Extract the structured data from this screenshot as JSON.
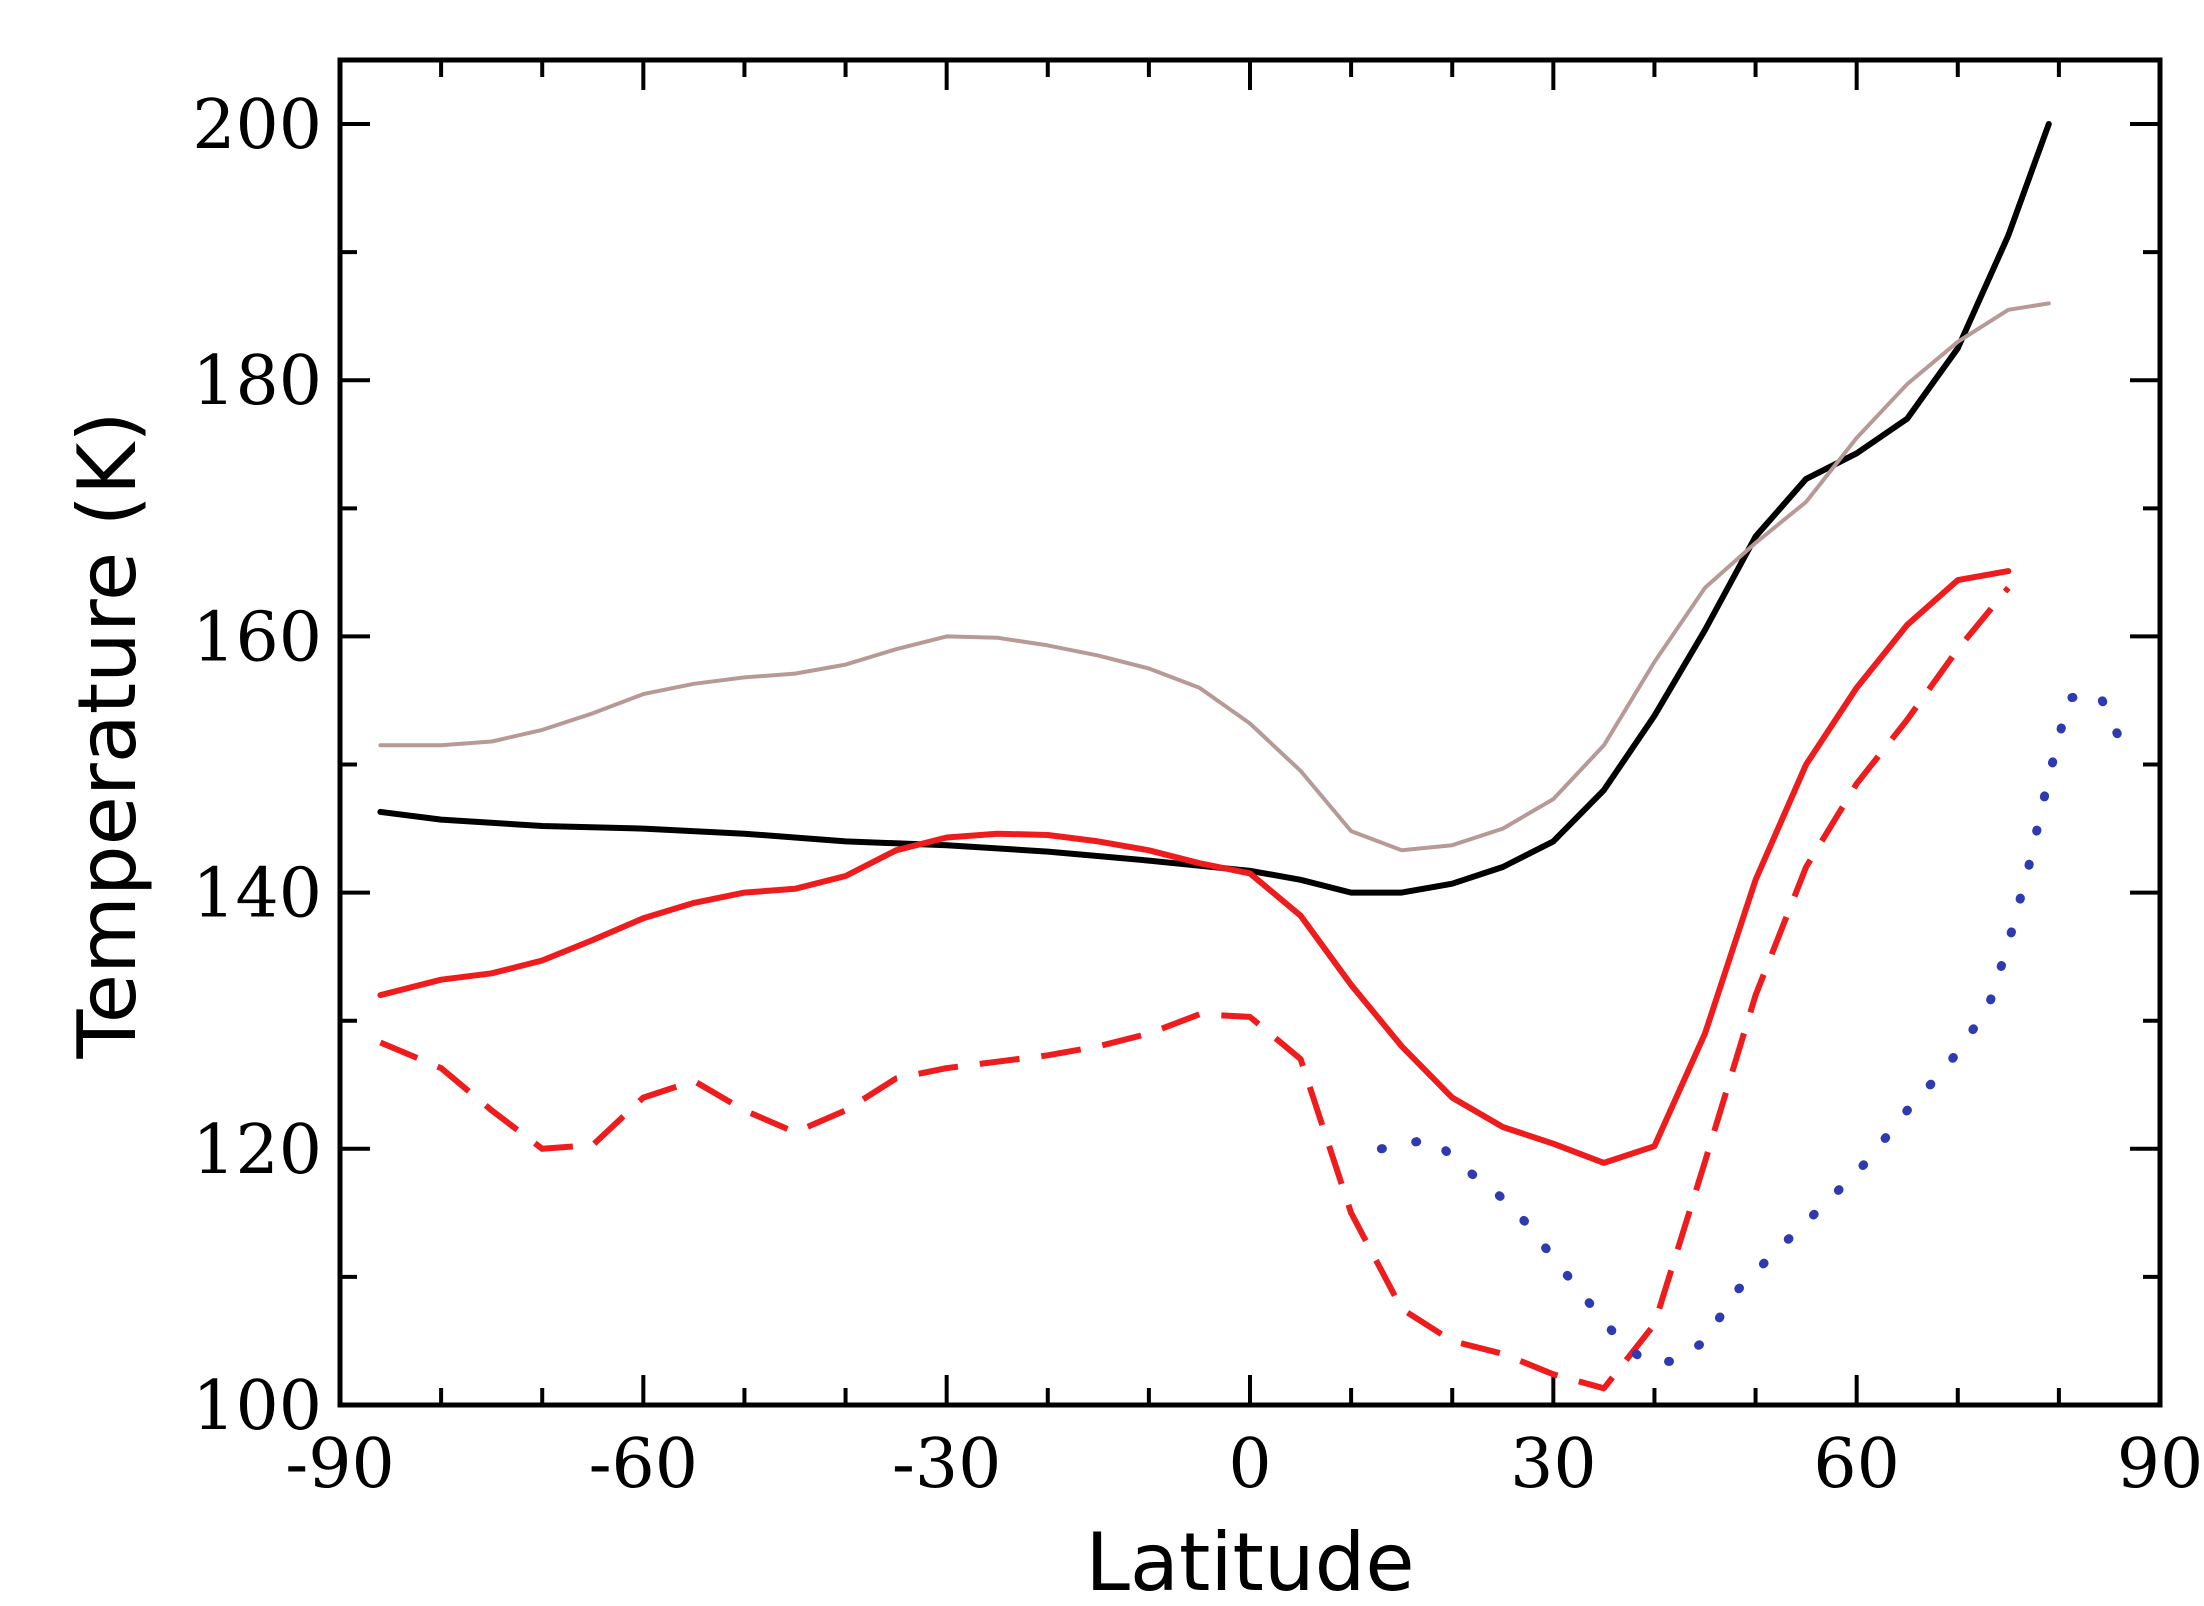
{
  "chart_data": {
    "type": "line",
    "title": "",
    "xlabel": "Latitude",
    "ylabel": "Temperature  (K)",
    "xlim": [
      -90,
      90
    ],
    "ylim": [
      100,
      205
    ],
    "x_ticks": [
      -90,
      -60,
      -30,
      0,
      30,
      60,
      90
    ],
    "x_tick_labels": [
      "-90",
      "-60",
      "-30",
      "0",
      "30",
      "60",
      "90"
    ],
    "y_ticks": [
      100,
      120,
      140,
      160,
      180,
      200
    ],
    "y_tick_labels": [
      "100",
      "120",
      "140",
      "160",
      "180",
      "200"
    ],
    "x_minor_step": 10,
    "y_minor_step": 10,
    "grid": false,
    "legend": null,
    "series": [
      {
        "name": "black-solid",
        "color": "#000000",
        "style": "solid",
        "points": [
          [
            -86,
            146.3
          ],
          [
            -80,
            145.7
          ],
          [
            -70,
            145.2
          ],
          [
            -60,
            145.0
          ],
          [
            -50,
            144.6
          ],
          [
            -40,
            144.0
          ],
          [
            -30,
            143.7
          ],
          [
            -20,
            143.2
          ],
          [
            -10,
            142.5
          ],
          [
            0,
            141.7
          ],
          [
            5,
            141.0
          ],
          [
            10,
            140.0
          ],
          [
            15,
            140.0
          ],
          [
            20,
            140.7
          ],
          [
            25,
            142.0
          ],
          [
            30,
            144.0
          ],
          [
            35,
            148.0
          ],
          [
            40,
            153.8
          ],
          [
            45,
            160.5
          ],
          [
            50,
            167.8
          ],
          [
            55,
            172.3
          ],
          [
            60,
            174.3
          ],
          [
            65,
            177.0
          ],
          [
            70,
            182.5
          ],
          [
            75,
            191.3
          ],
          [
            79,
            200.0
          ]
        ]
      },
      {
        "name": "tan-solid",
        "color": "#b79a96",
        "style": "solid",
        "points": [
          [
            -86,
            151.5
          ],
          [
            -80,
            151.5
          ],
          [
            -75,
            151.8
          ],
          [
            -70,
            152.7
          ],
          [
            -65,
            154.0
          ],
          [
            -60,
            155.5
          ],
          [
            -55,
            156.3
          ],
          [
            -50,
            156.8
          ],
          [
            -45,
            157.1
          ],
          [
            -40,
            157.8
          ],
          [
            -35,
            159.0
          ],
          [
            -30,
            160.0
          ],
          [
            -25,
            159.9
          ],
          [
            -20,
            159.3
          ],
          [
            -15,
            158.5
          ],
          [
            -10,
            157.5
          ],
          [
            -5,
            156.0
          ],
          [
            0,
            153.2
          ],
          [
            5,
            149.5
          ],
          [
            10,
            144.8
          ],
          [
            15,
            143.3
          ],
          [
            20,
            143.7
          ],
          [
            25,
            145.0
          ],
          [
            30,
            147.3
          ],
          [
            35,
            151.5
          ],
          [
            40,
            158.0
          ],
          [
            45,
            163.8
          ],
          [
            50,
            167.3
          ],
          [
            55,
            170.5
          ],
          [
            60,
            175.5
          ],
          [
            65,
            179.7
          ],
          [
            70,
            183.0
          ],
          [
            75,
            185.5
          ],
          [
            79,
            186.0
          ]
        ]
      },
      {
        "name": "red-solid",
        "color": "#ee1c1c",
        "style": "solid",
        "points": [
          [
            -86,
            132.0
          ],
          [
            -80,
            133.2
          ],
          [
            -75,
            133.7
          ],
          [
            -70,
            134.7
          ],
          [
            -65,
            136.3
          ],
          [
            -60,
            138.0
          ],
          [
            -55,
            139.2
          ],
          [
            -50,
            140.0
          ],
          [
            -45,
            140.3
          ],
          [
            -40,
            141.3
          ],
          [
            -35,
            143.3
          ],
          [
            -30,
            144.3
          ],
          [
            -25,
            144.6
          ],
          [
            -20,
            144.5
          ],
          [
            -15,
            144.0
          ],
          [
            -10,
            143.3
          ],
          [
            -5,
            142.3
          ],
          [
            0,
            141.5
          ],
          [
            5,
            138.2
          ],
          [
            10,
            132.8
          ],
          [
            15,
            128.0
          ],
          [
            20,
            124.0
          ],
          [
            25,
            121.7
          ],
          [
            30,
            120.4
          ],
          [
            35,
            118.9
          ],
          [
            40,
            120.2
          ],
          [
            45,
            129.0
          ],
          [
            50,
            141.0
          ],
          [
            55,
            150.0
          ],
          [
            60,
            156.0
          ],
          [
            65,
            160.9
          ],
          [
            70,
            164.4
          ],
          [
            75,
            165.1
          ]
        ]
      },
      {
        "name": "red-dashed",
        "color": "#ee1c1c",
        "style": "dashed",
        "points": [
          [
            -86,
            128.3
          ],
          [
            -80,
            126.3
          ],
          [
            -75,
            123.0
          ],
          [
            -70,
            120.0
          ],
          [
            -65,
            120.3
          ],
          [
            -60,
            124.0
          ],
          [
            -55,
            125.3
          ],
          [
            -50,
            123.0
          ],
          [
            -45,
            121.3
          ],
          [
            -40,
            123.0
          ],
          [
            -35,
            125.5
          ],
          [
            -30,
            126.3
          ],
          [
            -25,
            126.8
          ],
          [
            -20,
            127.3
          ],
          [
            -15,
            128.0
          ],
          [
            -10,
            129.0
          ],
          [
            -5,
            130.5
          ],
          [
            0,
            130.3
          ],
          [
            5,
            127.0
          ],
          [
            10,
            115.0
          ],
          [
            15,
            107.5
          ],
          [
            20,
            105.0
          ],
          [
            25,
            104.0
          ],
          [
            30,
            102.4
          ],
          [
            35,
            101.3
          ],
          [
            40,
            106.3
          ],
          [
            45,
            119.0
          ],
          [
            50,
            132.0
          ],
          [
            55,
            142.0
          ],
          [
            60,
            148.5
          ],
          [
            65,
            153.5
          ],
          [
            70,
            159.0
          ],
          [
            75,
            163.8
          ]
        ]
      },
      {
        "name": "blue-dotted",
        "color": "#2e3bb0",
        "style": "dotted",
        "points": [
          [
            13,
            120.0
          ],
          [
            18,
            120.8
          ],
          [
            22,
            118.0
          ],
          [
            26,
            115.5
          ],
          [
            30,
            111.5
          ],
          [
            33,
            108.5
          ],
          [
            36,
            105.6
          ],
          [
            39,
            103.4
          ],
          [
            42,
            103.4
          ],
          [
            45,
            105.0
          ],
          [
            48,
            108.8
          ],
          [
            52,
            112.0
          ],
          [
            57,
            115.8
          ],
          [
            61,
            119.0
          ],
          [
            65,
            123.0
          ],
          [
            69,
            126.5
          ],
          [
            73,
            131.0
          ],
          [
            75,
            136.0
          ],
          [
            77,
            142.0
          ],
          [
            79,
            149.0
          ],
          [
            81,
            155.2
          ],
          [
            84,
            155.5
          ],
          [
            86,
            152.0
          ]
        ]
      }
    ]
  }
}
